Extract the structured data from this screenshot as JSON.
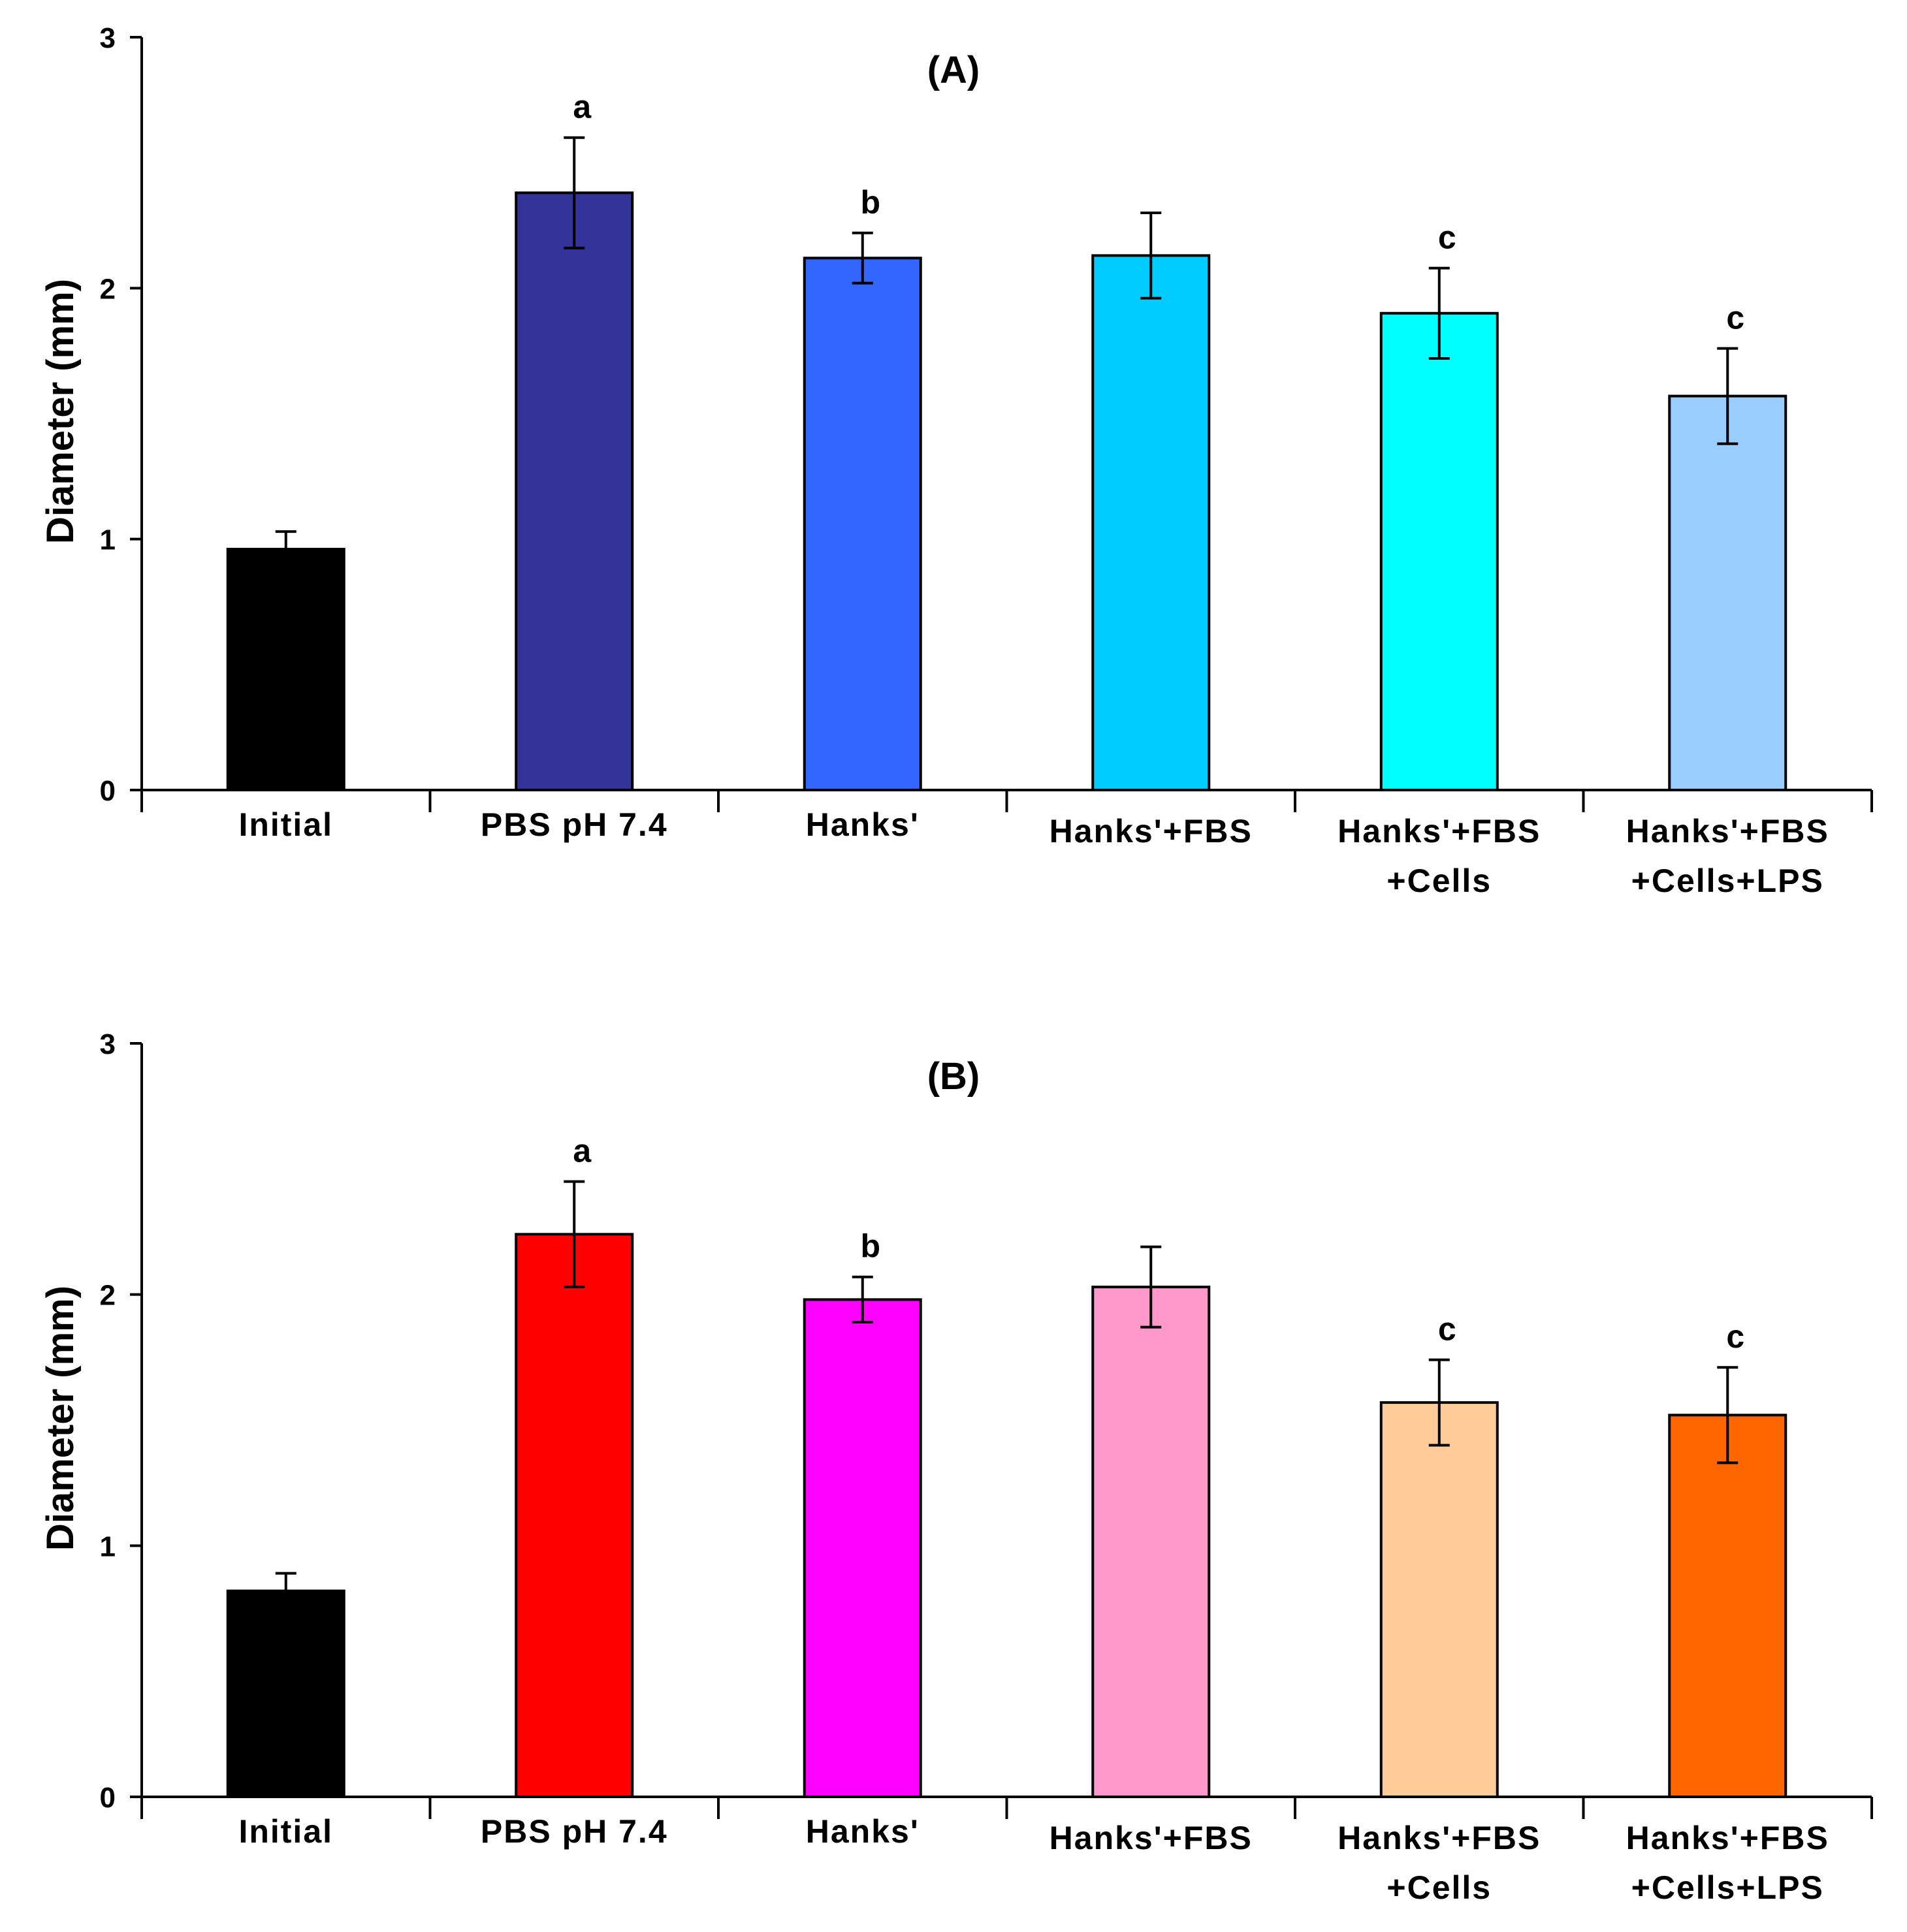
{
  "chart_data": [
    {
      "type": "bar",
      "title": "(A)",
      "xlabel": "",
      "ylabel": "Diameter (mm)",
      "ylim": [
        0,
        3
      ],
      "yticks": [
        0,
        1,
        2,
        3
      ],
      "grid": false,
      "categories": [
        [
          "Initial"
        ],
        [
          "PBS pH 7.4"
        ],
        [
          "Hanks'"
        ],
        [
          "Hanks'+FBS"
        ],
        [
          "Hanks'+FBS",
          "+Cells"
        ],
        [
          "Hanks'+FBS",
          "+Cells+LPS"
        ]
      ],
      "values": [
        0.96,
        2.38,
        2.12,
        2.13,
        1.9,
        1.57
      ],
      "errors": [
        0.07,
        0.22,
        0.1,
        0.17,
        0.18,
        0.19
      ],
      "annotations": [
        "",
        "a",
        "b",
        "",
        "c",
        "c"
      ],
      "colors": [
        "#000000",
        "#333399",
        "#3366ff",
        "#00ccff",
        "#00ffff",
        "#99ccff"
      ]
    },
    {
      "type": "bar",
      "title": "(B)",
      "xlabel": "",
      "ylabel": "Diameter (mm)",
      "ylim": [
        0,
        3
      ],
      "yticks": [
        0,
        1,
        2,
        3
      ],
      "grid": false,
      "categories": [
        [
          "Initial"
        ],
        [
          "PBS pH 7.4"
        ],
        [
          "Hanks'"
        ],
        [
          "Hanks'+FBS"
        ],
        [
          "Hanks'+FBS",
          "+Cells"
        ],
        [
          "Hanks'+FBS",
          "+Cells+LPS"
        ]
      ],
      "values": [
        0.82,
        2.24,
        1.98,
        2.03,
        1.57,
        1.52
      ],
      "errors": [
        0.07,
        0.21,
        0.09,
        0.16,
        0.17,
        0.19
      ],
      "annotations": [
        "",
        "a",
        "b",
        "",
        "c",
        "c"
      ],
      "colors": [
        "#000000",
        "#ff0000",
        "#ff00ff",
        "#ff99cc",
        "#ffcc99",
        "#ff6600"
      ]
    }
  ]
}
